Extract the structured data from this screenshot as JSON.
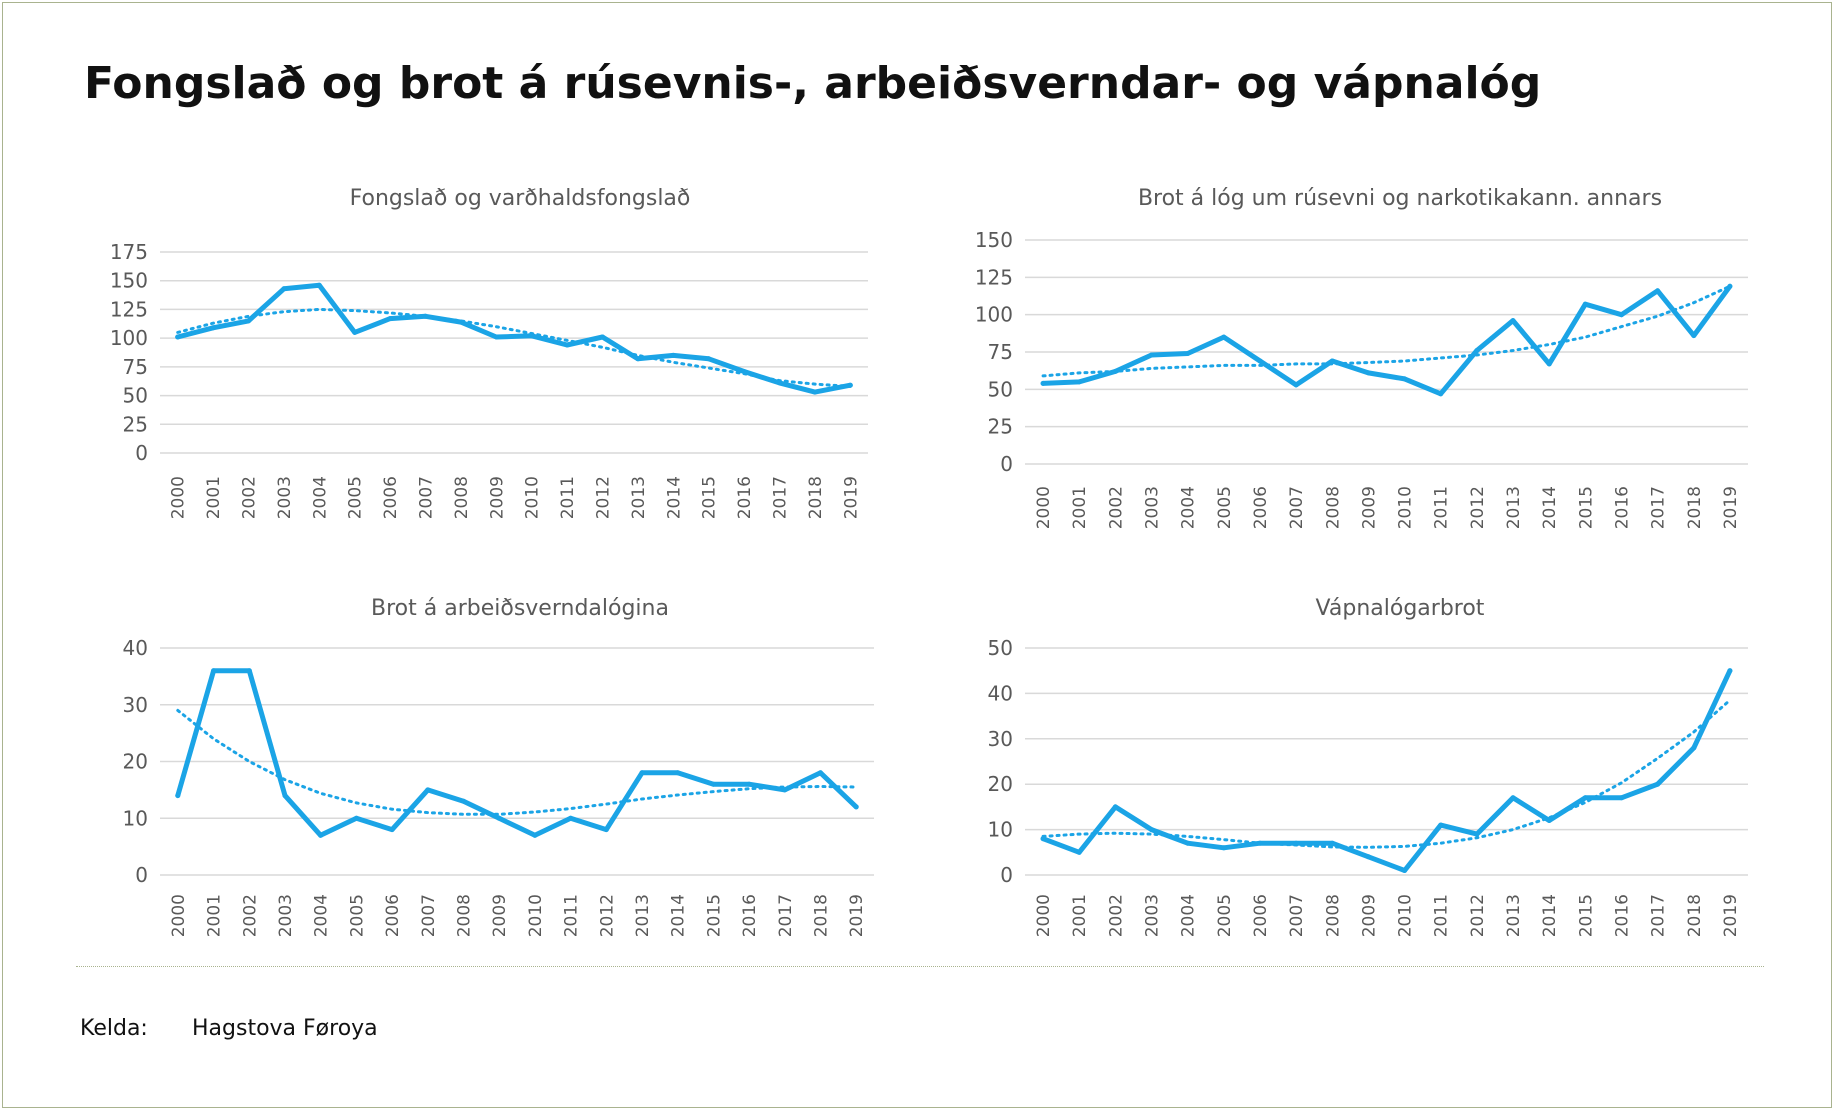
{
  "main_title": "Fongslað og brot á rúsevnis-, arbeiðsverndar- og vápnalóg",
  "source": {
    "label": "Kelda:",
    "value": "Hagstova Føroya"
  },
  "colors": {
    "series": "#1ba4e6",
    "gridline": "#d9d9d9",
    "text": "#595959"
  },
  "chart_data": [
    {
      "type": "line",
      "title": "Fongslað og varðhaldsfongslað",
      "categories": [
        "2000",
        "2001",
        "2002",
        "2003",
        "2004",
        "2005",
        "2006",
        "2007",
        "2008",
        "2009",
        "2010",
        "2011",
        "2012",
        "2013",
        "2014",
        "2015",
        "2016",
        "2017",
        "2018",
        "2019"
      ],
      "values": [
        101,
        109,
        115,
        143,
        146,
        105,
        117,
        119,
        114,
        101,
        102,
        94,
        101,
        82,
        85,
        82,
        71,
        61,
        53,
        59
      ],
      "trend": [
        105,
        113,
        119,
        123,
        125,
        124,
        122,
        119,
        115,
        110,
        104,
        98,
        92,
        85,
        79,
        74,
        69,
        63,
        60,
        58
      ],
      "yticks": [
        0,
        25,
        50,
        75,
        100,
        125,
        150,
        175
      ],
      "ylim": [
        0,
        175
      ]
    },
    {
      "type": "line",
      "title": "Brot á lóg um rúsevni og narkotikakann. annars",
      "categories": [
        "2000",
        "2001",
        "2002",
        "2003",
        "2004",
        "2005",
        "2006",
        "2007",
        "2008",
        "2009",
        "2010",
        "2011",
        "2012",
        "2013",
        "2014",
        "2015",
        "2016",
        "2017",
        "2018",
        "2019"
      ],
      "values": [
        54,
        55,
        62,
        73,
        74,
        85,
        69,
        53,
        69,
        61,
        57,
        47,
        76,
        96,
        67,
        107,
        100,
        116,
        86,
        119
      ],
      "trend": [
        59,
        61,
        62,
        64,
        65,
        66,
        66,
        67,
        67,
        68,
        69,
        71,
        73,
        76,
        80,
        85,
        92,
        99,
        108,
        119
      ],
      "yticks": [
        0,
        25,
        50,
        75,
        100,
        125,
        150
      ],
      "ylim": [
        0,
        150
      ]
    },
    {
      "type": "line",
      "title": "Brot á arbeiðsverndalógina",
      "categories": [
        "2000",
        "2001",
        "2002",
        "2003",
        "2004",
        "2005",
        "2006",
        "2007",
        "2008",
        "2009",
        "2010",
        "2011",
        "2012",
        "2013",
        "2014",
        "2015",
        "2016",
        "2017",
        "2018",
        "2019"
      ],
      "values": [
        14,
        36,
        36,
        14,
        7,
        10,
        8,
        15,
        13,
        10,
        7,
        10,
        8,
        18,
        18,
        16,
        16,
        15,
        18,
        12
      ],
      "trend": [
        29,
        24,
        20,
        16.8,
        14.4,
        12.7,
        11.6,
        11,
        10.7,
        10.7,
        11.1,
        11.7,
        12.5,
        13.4,
        14.1,
        14.7,
        15.2,
        15.5,
        15.6,
        15.5
      ],
      "yticks": [
        0,
        10,
        20,
        30,
        40
      ],
      "ylim": [
        0,
        40
      ]
    },
    {
      "type": "line",
      "title": "Vápnalógarbrot",
      "categories": [
        "2000",
        "2001",
        "2002",
        "2003",
        "2004",
        "2005",
        "2006",
        "2007",
        "2008",
        "2009",
        "2010",
        "2011",
        "2012",
        "2013",
        "2014",
        "2015",
        "2016",
        "2017",
        "2018",
        "2019"
      ],
      "values": [
        8,
        5,
        15,
        10,
        7,
        6,
        7,
        7,
        7,
        4,
        1,
        11,
        9,
        17,
        12,
        17,
        17,
        20,
        28,
        45
      ],
      "trend": [
        8.5,
        9,
        9.2,
        9,
        8.5,
        7.8,
        7,
        6.6,
        6.2,
        6.1,
        6.3,
        7,
        8.2,
        10,
        12.6,
        16,
        20.3,
        25.7,
        31.5,
        38.5
      ],
      "yticks": [
        0,
        10,
        20,
        30,
        40,
        50
      ],
      "ylim": [
        0,
        50
      ]
    }
  ]
}
